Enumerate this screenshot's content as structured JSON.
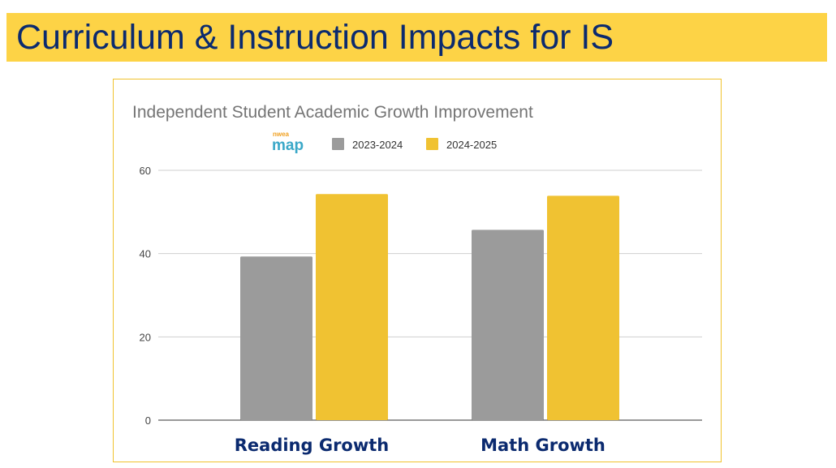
{
  "slide": {
    "title": "Curriculum & Instruction Impacts for IS"
  },
  "chart_data": {
    "type": "bar",
    "title": "Independent Student Academic Growth Improvement",
    "logo_text": "nwea map",
    "categories": [
      "Reading Growth",
      "Math Growth"
    ],
    "series": [
      {
        "name": "2023-2024",
        "values": [
          39.3,
          45.7
        ],
        "color": "#9b9b9b"
      },
      {
        "name": "2024-2025",
        "values": [
          54.3,
          53.9
        ],
        "color": "#f0c232"
      }
    ],
    "ylim": [
      0,
      60
    ],
    "yticks": [
      "0",
      "20",
      "40",
      "60"
    ],
    "grid": true,
    "legend": "top-center",
    "xlabel": "",
    "ylabel": ""
  }
}
